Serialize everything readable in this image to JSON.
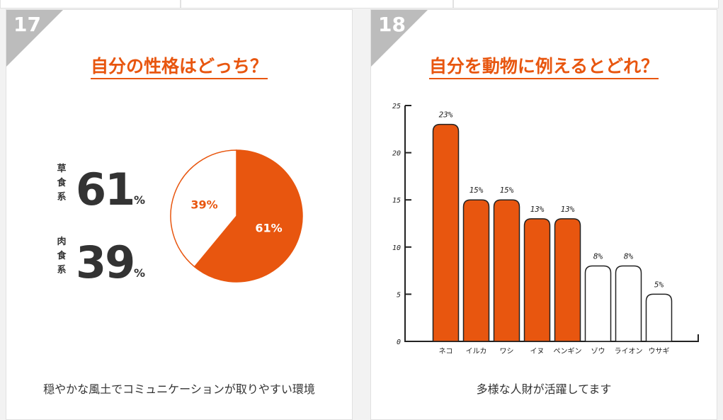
{
  "cards": [
    {
      "number": "17",
      "title": "自分の性格はどっち？",
      "caption": "穏やかな風土でコミュニケーションが取りやすい環境",
      "stats": [
        {
          "label": "草食系",
          "value": "61",
          "unit": "%"
        },
        {
          "label": "肉食系",
          "value": "39",
          "unit": "%"
        }
      ]
    },
    {
      "number": "18",
      "title": "自分を動物に例えるとどれ？",
      "caption": "多様な人財が活躍してます"
    }
  ],
  "colors": {
    "accent": "#e8560f",
    "badge": "#bcbcbc",
    "text": "#333333"
  },
  "chart_data": [
    {
      "type": "pie",
      "labels": [
        "草食系",
        "肉食系"
      ],
      "values": [
        61,
        39
      ],
      "data_labels": [
        "61%",
        "39%"
      ],
      "colors": [
        "#e8560f",
        "#ffffff"
      ]
    },
    {
      "type": "bar",
      "categories": [
        "ネコ",
        "イルカ",
        "ワシ",
        "イヌ",
        "ペンギン",
        "ゾウ",
        "ライオン",
        "ウサギ"
      ],
      "values": [
        23,
        15,
        15,
        13,
        13,
        8,
        8,
        5
      ],
      "data_labels": [
        "23%",
        "15%",
        "15%",
        "13%",
        "13%",
        "8%",
        "8%",
        "5%"
      ],
      "highlighted": [
        true,
        true,
        true,
        true,
        true,
        false,
        false,
        false
      ],
      "yticks": [
        "0",
        "5",
        "10",
        "15",
        "20",
        "25"
      ],
      "ylim": [
        0,
        25
      ]
    }
  ]
}
